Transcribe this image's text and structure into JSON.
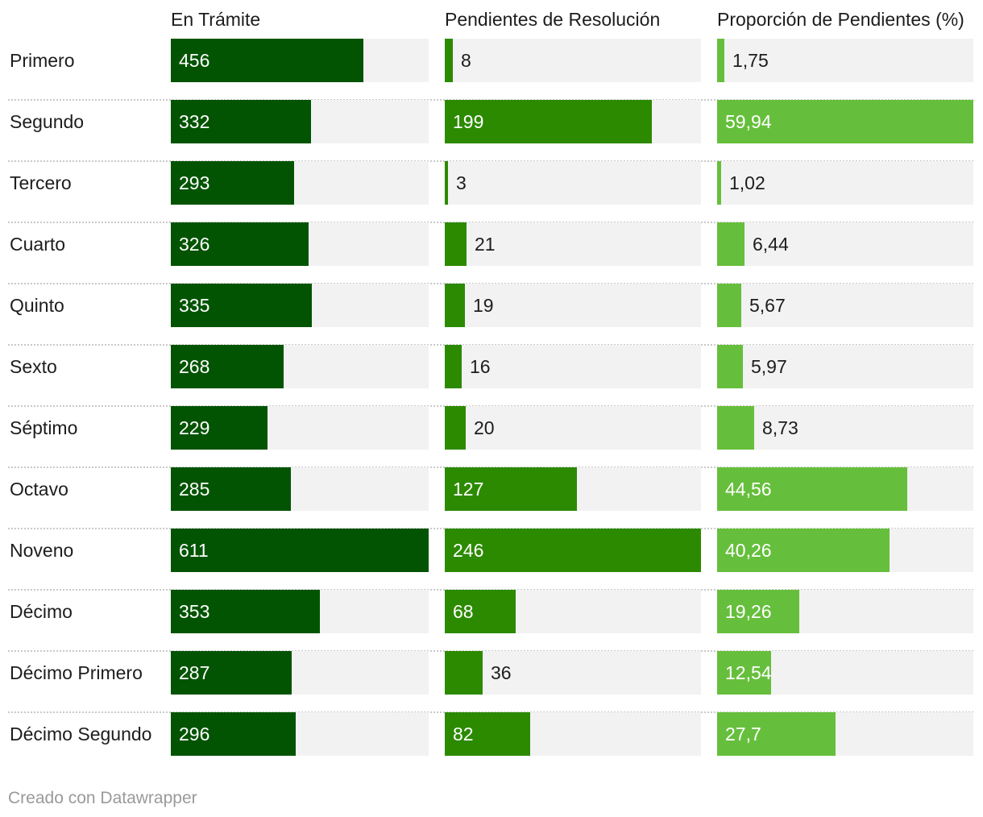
{
  "chart_data": {
    "type": "bar",
    "categories": [
      "Primero",
      "Segundo",
      "Tercero",
      "Cuarto",
      "Quinto",
      "Sexto",
      "Séptimo",
      "Octavo",
      "Noveno",
      "Décimo",
      "Décimo Primero",
      "Décimo Segundo"
    ],
    "series": [
      {
        "name": "En Trámite",
        "color": "#025402",
        "values": [
          456,
          332,
          293,
          326,
          335,
          268,
          229,
          285,
          611,
          353,
          287,
          296
        ],
        "labels": [
          "456",
          "332",
          "293",
          "326",
          "335",
          "268",
          "229",
          "285",
          "611",
          "353",
          "287",
          "296"
        ]
      },
      {
        "name": "Pendientes de Resolución",
        "color": "#2c8a01",
        "values": [
          8,
          199,
          3,
          21,
          19,
          16,
          20,
          127,
          246,
          68,
          36,
          82
        ],
        "labels": [
          "8",
          "199",
          "3",
          "21",
          "19",
          "16",
          "20",
          "127",
          "246",
          "68",
          "36",
          "82"
        ]
      },
      {
        "name": "Proporción de Pendientes (%)",
        "color": "#66bf3c",
        "values": [
          1.75,
          59.94,
          1.02,
          6.44,
          5.67,
          5.97,
          8.73,
          44.56,
          40.26,
          19.26,
          12.54,
          27.7
        ],
        "labels": [
          "1,75",
          "59,94",
          "1,02",
          "6,44",
          "5,67",
          "5,97",
          "8,73",
          "44,56",
          "40,26",
          "19,26",
          "12,54",
          "27,7"
        ]
      }
    ]
  },
  "colors": {
    "bar_background": "#f2f2f2",
    "label_inside": "#ffffff",
    "label_outside": "#1d1d1d"
  },
  "footer": "Creado con Datawrapper"
}
